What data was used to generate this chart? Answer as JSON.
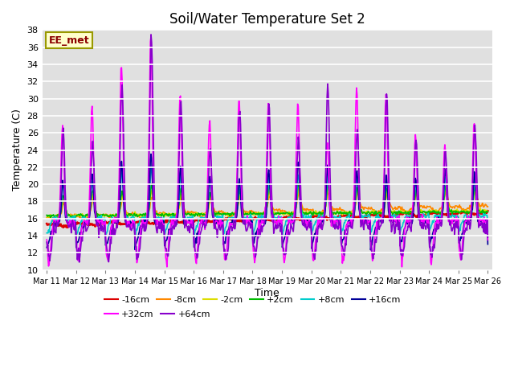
{
  "title": "Soil/Water Temperature Set 2",
  "xlabel": "Time",
  "ylabel": "Temperature (C)",
  "ylim": [
    10,
    38
  ],
  "annotation": "EE_met",
  "background_color": "#e0e0e0",
  "series_order": [
    "-16cm",
    "-8cm",
    "-2cm",
    "+2cm",
    "+8cm",
    "+16cm",
    "+32cm",
    "+64cm"
  ],
  "series": {
    "-16cm": {
      "color": "#dd0000",
      "lw": 1.8
    },
    "-8cm": {
      "color": "#ff8800",
      "lw": 1.2
    },
    "-2cm": {
      "color": "#dddd00",
      "lw": 1.2
    },
    "+2cm": {
      "color": "#00bb00",
      "lw": 1.2
    },
    "+8cm": {
      "color": "#00cccc",
      "lw": 1.2
    },
    "+16cm": {
      "color": "#000099",
      "lw": 1.2
    },
    "+32cm": {
      "color": "#ff00ff",
      "lw": 1.2
    },
    "+64cm": {
      "color": "#8800cc",
      "lw": 1.2
    }
  },
  "xtick_labels": [
    "Mar 11",
    "Mar 12",
    "Mar 13",
    "Mar 14",
    "Mar 15",
    "Mar 16",
    "Mar 17",
    "Mar 18",
    "Mar 19",
    "Mar 20",
    "Mar 21",
    "Mar 22",
    "Mar 23",
    "Mar 24",
    "Mar 25",
    "Mar 26"
  ],
  "ytick_vals": [
    10,
    12,
    14,
    16,
    18,
    20,
    22,
    24,
    26,
    28,
    30,
    32,
    34,
    36,
    38
  ]
}
